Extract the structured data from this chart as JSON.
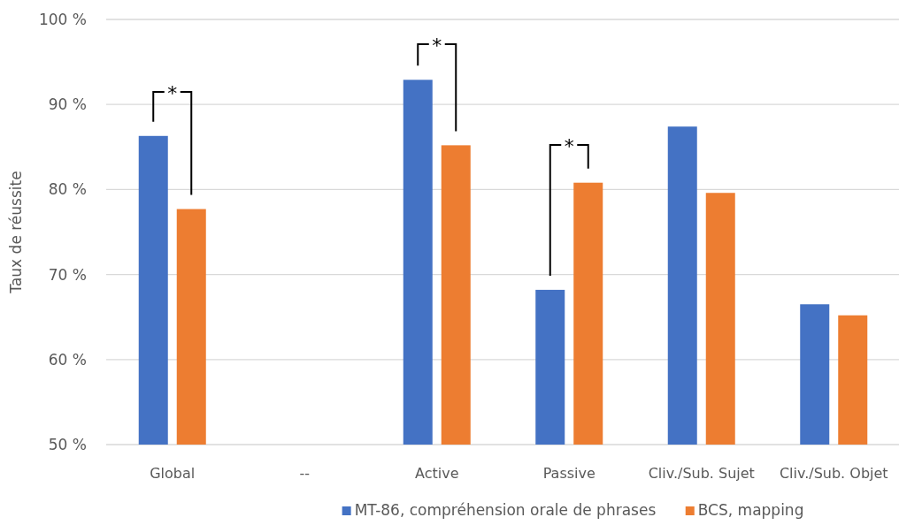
{
  "chart_data": {
    "type": "bar",
    "ylabel": "Taux de réussite",
    "categories": [
      "Global",
      "--",
      "Active",
      "Passive",
      "Cliv./Sub. Sujet",
      "Cliv./Sub. Objet"
    ],
    "series": [
      {
        "name": "MT-86, compréhension orale de phrases",
        "color": "#4472c4",
        "values": [
          86.3,
          null,
          92.9,
          68.2,
          87.4,
          66.5
        ]
      },
      {
        "name": "BCS, mapping",
        "color": "#ed7d31",
        "values": [
          77.7,
          null,
          85.2,
          80.8,
          79.6,
          65.2
        ]
      }
    ],
    "ylim": [
      50,
      100
    ],
    "yticks": [
      {
        "value": 50,
        "label": "50 %"
      },
      {
        "value": 60,
        "label": "60 %"
      },
      {
        "value": 70,
        "label": "70 %"
      },
      {
        "value": 80,
        "label": "80 %"
      },
      {
        "value": 90,
        "label": "90 %"
      },
      {
        "value": 100,
        "label": "100 %"
      }
    ],
    "grid": "y",
    "legend": "bottom",
    "annotations": [
      "*",
      "*",
      "*"
    ]
  }
}
